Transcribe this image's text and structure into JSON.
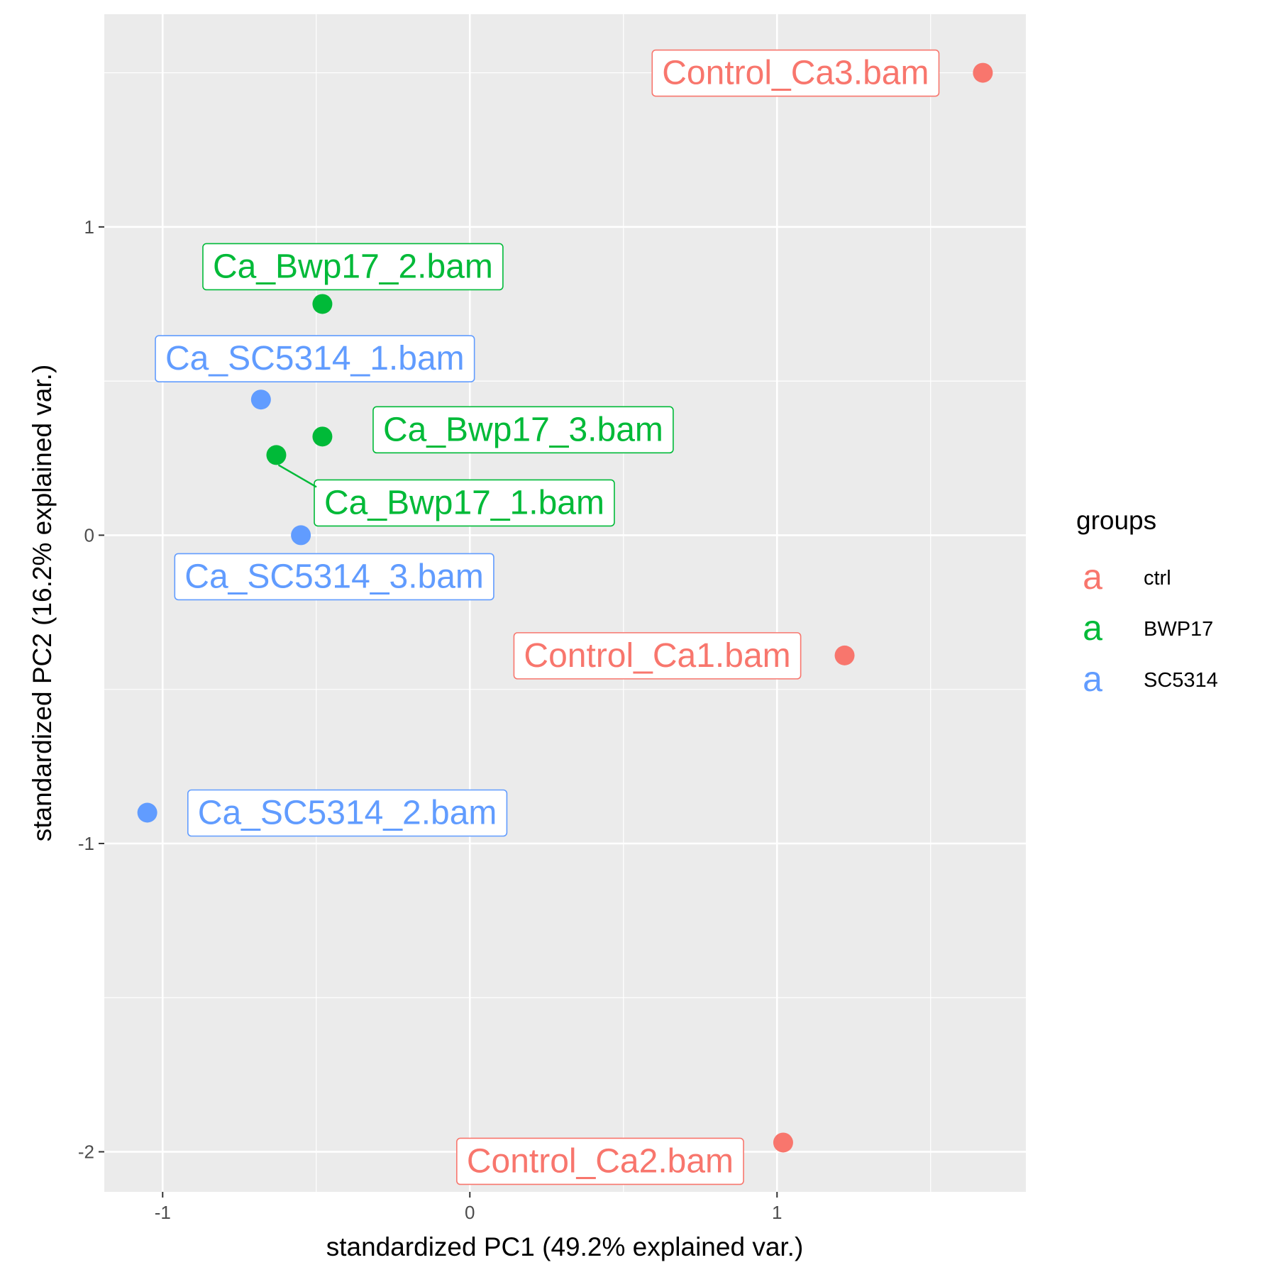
{
  "chart_data": {
    "type": "scatter",
    "xlabel": "standardized PC1 (49.2% explained var.)",
    "ylabel": "standardized PC2 (16.2% explained var.)",
    "xlim": [
      -1.19,
      1.81
    ],
    "ylim": [
      -2.13,
      1.69
    ],
    "x_ticks": [
      -1,
      0,
      1
    ],
    "y_ticks": [
      -2,
      -1,
      0,
      1
    ],
    "x_tick_labels": [
      "-1",
      "0",
      "1"
    ],
    "y_tick_labels": [
      "-2",
      "-1",
      "0",
      "1"
    ],
    "grid": true,
    "legend": {
      "title": "groups",
      "position": "right",
      "key_glyph": "a",
      "entries": [
        {
          "label": "ctrl",
          "color": "#F8766D"
        },
        {
          "label": "BWP17",
          "color": "#00BA38"
        },
        {
          "label": "SC5314",
          "color": "#619CFF"
        }
      ]
    },
    "series": [
      {
        "name": "ctrl",
        "color": "#F8766D",
        "points": [
          {
            "x": 1.67,
            "y": 1.5,
            "label": "Control_Ca3.bam"
          },
          {
            "x": 1.22,
            "y": -0.39,
            "label": "Control_Ca1.bam"
          },
          {
            "x": 1.02,
            "y": -1.97,
            "label": "Control_Ca2.bam"
          }
        ]
      },
      {
        "name": "BWP17",
        "color": "#00BA38",
        "points": [
          {
            "x": -0.48,
            "y": 0.75,
            "label": "Ca_Bwp17_2.bam"
          },
          {
            "x": -0.48,
            "y": 0.32,
            "label": "Ca_Bwp17_3.bam"
          },
          {
            "x": -0.63,
            "y": 0.26,
            "label": "Ca_Bwp17_1.bam"
          }
        ]
      },
      {
        "name": "SC5314",
        "color": "#619CFF",
        "points": [
          {
            "x": -0.68,
            "y": 0.44,
            "label": "Ca_SC5314_1.bam"
          },
          {
            "x": -0.55,
            "y": 0.0,
            "label": "Ca_SC5314_3.bam"
          },
          {
            "x": -1.05,
            "y": -0.9,
            "label": "Ca_SC5314_2.bam"
          }
        ]
      }
    ]
  }
}
